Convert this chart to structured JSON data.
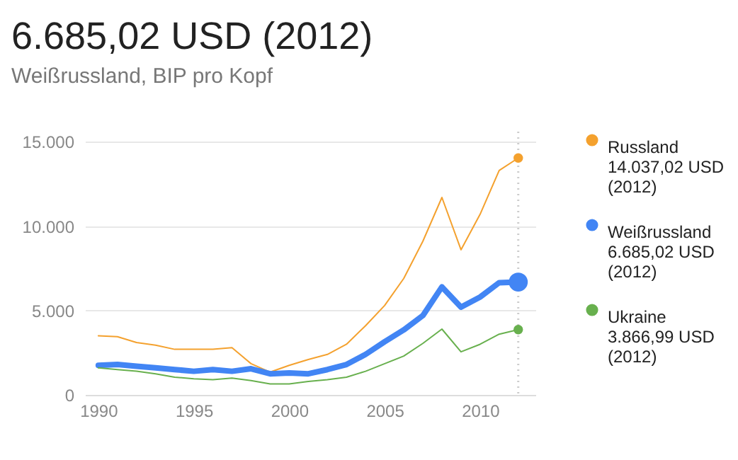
{
  "chart_data": {
    "type": "line",
    "title": "6.685,02 USD (2012)",
    "subtitle": "Weißrussland, BIP pro Kopf",
    "x": [
      1990,
      1991,
      1992,
      1993,
      1994,
      1995,
      1996,
      1997,
      1998,
      1999,
      2000,
      2001,
      2002,
      2003,
      2004,
      2005,
      2006,
      2007,
      2008,
      2009,
      2010,
      2011,
      2012
    ],
    "series": [
      {
        "name": "Russland",
        "color": "#f4a12e",
        "values": [
          3500,
          3450,
          3100,
          2950,
          2700,
          2700,
          2700,
          2800,
          1850,
          1350,
          1750,
          2100,
          2400,
          3000,
          4100,
          5300,
          6900,
          9100,
          11700,
          8600,
          10700,
          13300,
          14037.02
        ]
      },
      {
        "name": "Weißrussland",
        "color": "#4285f4",
        "values": [
          1750,
          1800,
          1700,
          1600,
          1500,
          1400,
          1500,
          1400,
          1550,
          1250,
          1300,
          1250,
          1500,
          1800,
          2400,
          3150,
          3850,
          4700,
          6400,
          5200,
          5800,
          6650,
          6685.02
        ]
      },
      {
        "name": "Ukraine",
        "color": "#68b04e",
        "values": [
          1600,
          1500,
          1400,
          1250,
          1050,
          950,
          900,
          1000,
          850,
          650,
          650,
          800,
          900,
          1050,
          1400,
          1850,
          2300,
          3050,
          3900,
          2550,
          3000,
          3600,
          3866.99
        ]
      }
    ],
    "annotations": [
      "14.037,02 USD (2012)",
      "6.685,02 USD (2012)",
      "3.866,99 USD (2012)"
    ],
    "xlim": [
      1989.3,
      2012.9
    ],
    "ylim": [
      0,
      15600
    ],
    "xticks": [
      1990,
      1995,
      2000,
      2005,
      2010
    ],
    "yticks": [
      {
        "value": 0,
        "label": "0"
      },
      {
        "value": 5000,
        "label": "5.000"
      },
      {
        "value": 10000,
        "label": "10.000"
      },
      {
        "value": 15000,
        "label": "15.000"
      }
    ],
    "ref_lines": [
      {
        "axis": "x",
        "value": 2012,
        "label": null,
        "color": "#cccccc",
        "line_style": "dotted"
      }
    ],
    "grid": "y",
    "legend": "right"
  }
}
